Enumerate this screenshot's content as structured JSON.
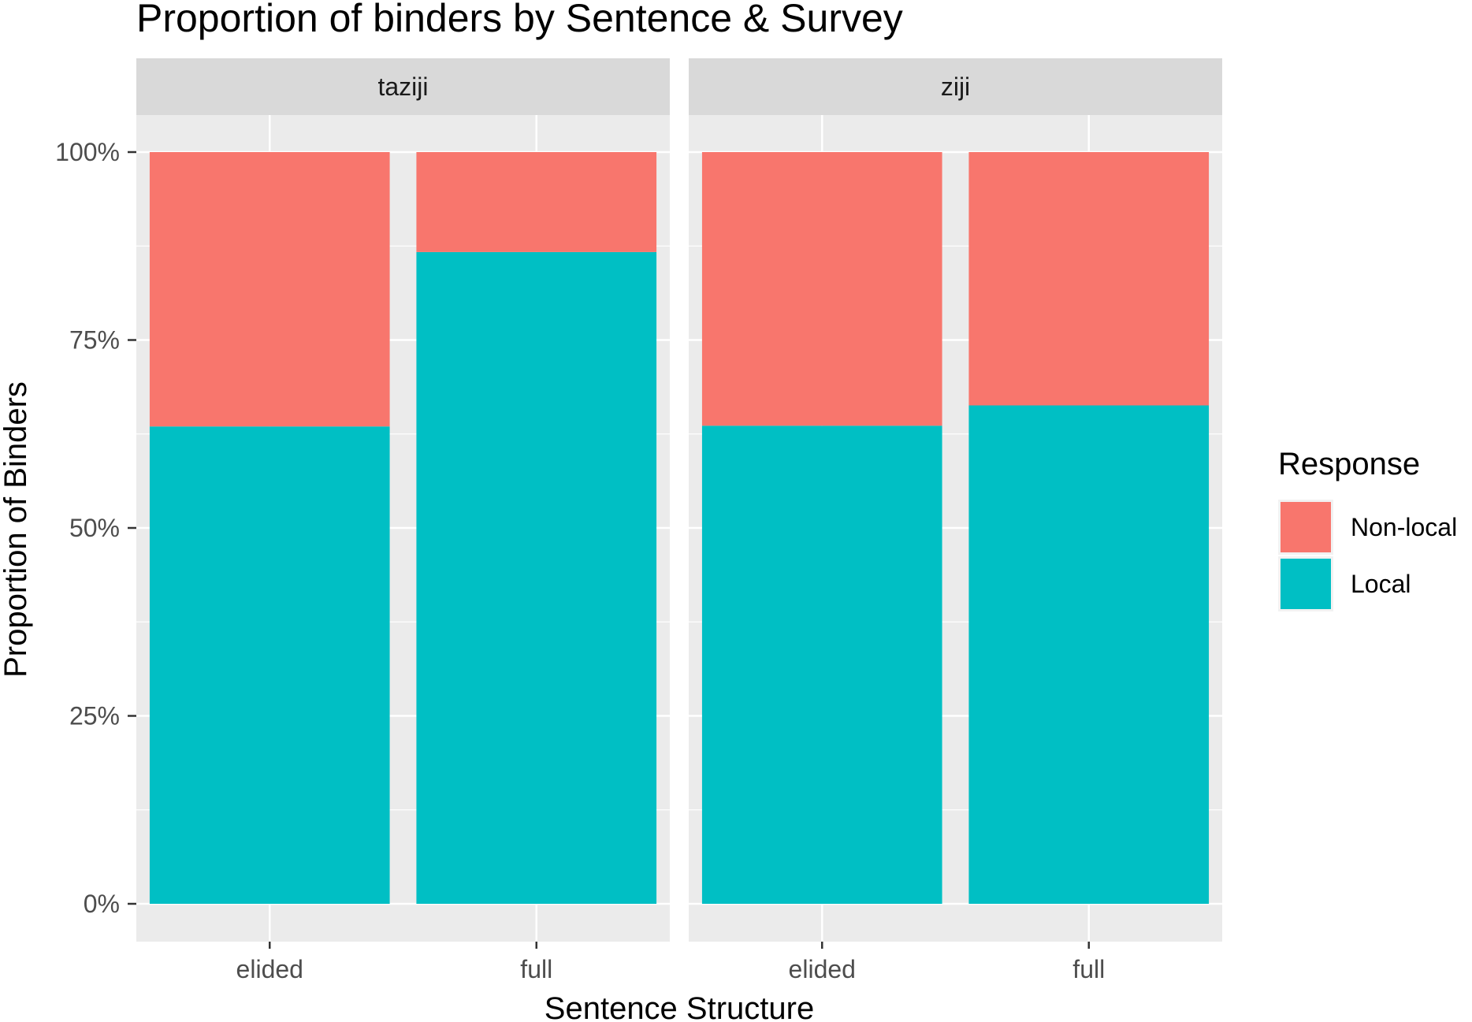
{
  "chart_data": {
    "type": "bar",
    "stacked": true,
    "title": "Proportion of binders by Sentence & Survey",
    "xlabel": "Sentence Structure",
    "ylabel": "Proportion of Binders",
    "ylim": [
      0,
      1
    ],
    "y_ticks": [
      "0%",
      "25%",
      "50%",
      "75%",
      "100%"
    ],
    "grid": true,
    "legend": {
      "title": "Response",
      "position": "right",
      "entries": [
        {
          "name": "Non-local",
          "color": "#F8766D"
        },
        {
          "name": "Local",
          "color": "#00BFC4"
        }
      ]
    },
    "categories": [
      "elided",
      "full"
    ],
    "panels": [
      {
        "facet": "taziji",
        "series": [
          {
            "name": "Local",
            "values": [
              0.635,
              0.867
            ]
          },
          {
            "name": "Non-local",
            "values": [
              0.365,
              0.133
            ]
          }
        ]
      },
      {
        "facet": "ziji",
        "series": [
          {
            "name": "Local",
            "values": [
              0.636,
              0.663
            ]
          },
          {
            "name": "Non-local",
            "values": [
              0.364,
              0.337
            ]
          }
        ]
      }
    ]
  },
  "colors": {
    "panel_bg": "#EBEBEB",
    "strip_bg": "#D9D9D9",
    "grid": "#FFFFFF",
    "non_local": "#F8766D",
    "local": "#00BFC4"
  }
}
